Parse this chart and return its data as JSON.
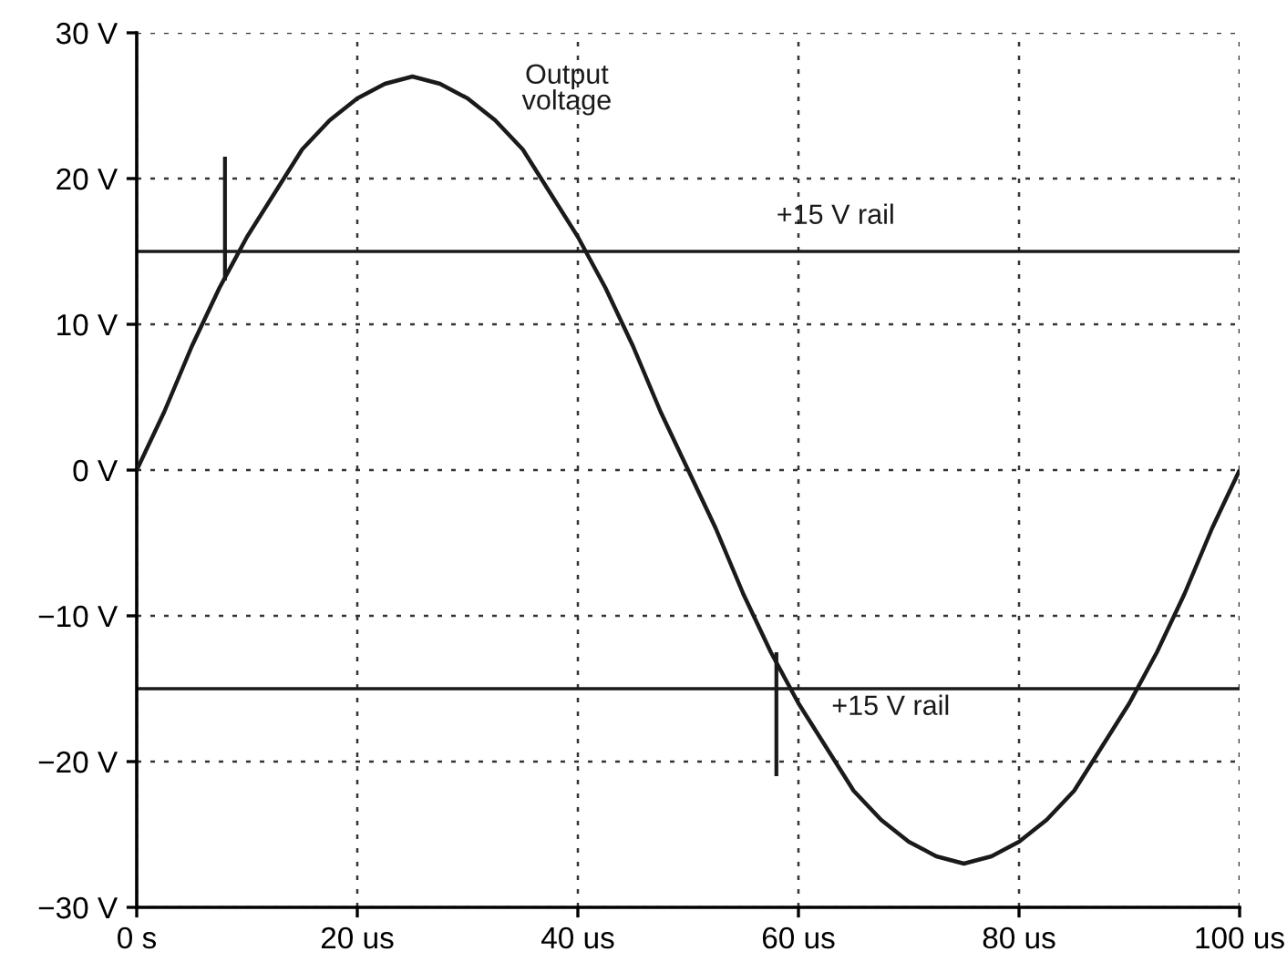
{
  "chart_data": {
    "type": "line",
    "x": [
      0,
      2.5,
      5,
      7.5,
      10,
      12.5,
      15,
      17.5,
      20,
      22.5,
      25,
      27.5,
      30,
      32.5,
      35,
      37.5,
      40,
      42.5,
      45,
      47.5,
      50,
      52.5,
      55,
      57.5,
      60,
      62.5,
      65,
      67.5,
      70,
      72.5,
      75,
      77.5,
      80,
      82.5,
      85,
      87.5,
      90,
      92.5,
      95,
      97.5,
      100
    ],
    "series": [
      {
        "color": "#1a1a1a",
        "values": [
          0,
          4,
          8.5,
          12.5,
          16,
          19,
          22,
          24,
          25.5,
          26.5,
          27,
          26.5,
          25.5,
          24,
          22,
          19,
          16,
          12.5,
          8.5,
          4,
          0,
          -4,
          -8.5,
          -12.5,
          -16,
          -19,
          -22,
          -24,
          -25.5,
          -26.5,
          -27,
          -26.5,
          -25.5,
          -24,
          -22,
          -19,
          -16,
          -12.5,
          -8.5,
          -4,
          0
        ]
      },
      {
        "type": "bar",
        "color": "#1a1a1a",
        "x": [
          8,
          58
        ],
        "base": [
          13,
          -12.5
        ],
        "values": [
          8.5,
          -8.5
        ]
      }
    ],
    "xlim": [
      0,
      100
    ],
    "xticks": [
      {
        "value": 0,
        "label": "0 s"
      },
      {
        "value": 20,
        "label": "20 us"
      },
      {
        "value": 40,
        "label": "40 us"
      },
      {
        "value": 60,
        "label": "60 us"
      },
      {
        "value": 80,
        "label": "80 us"
      },
      {
        "value": 100,
        "label": "100 us"
      }
    ],
    "ylim": [
      -30,
      30
    ],
    "yticks": [
      {
        "value": -30,
        "label": "−30 V"
      },
      {
        "value": -20,
        "label": "−20 V"
      },
      {
        "value": -10,
        "label": "−10 V"
      },
      {
        "value": 0,
        "label": "0 V"
      },
      {
        "value": 10,
        "label": "10 V"
      },
      {
        "value": 20,
        "label": "20 V"
      },
      {
        "value": 30,
        "label": "30 V"
      }
    ],
    "ref_lines": [
      {
        "axis": "y",
        "value": 15,
        "label": "+15 V rail",
        "color": "#1a1a1a",
        "line_style": "solid"
      },
      {
        "axis": "y",
        "value": -15,
        "label": "+15 V rail",
        "color": "#1a1a1a",
        "line_style": "solid"
      }
    ],
    "annotations": [
      "Output\nvoltage"
    ],
    "grid": true,
    "line_style": "solid",
    "marker": "none"
  }
}
